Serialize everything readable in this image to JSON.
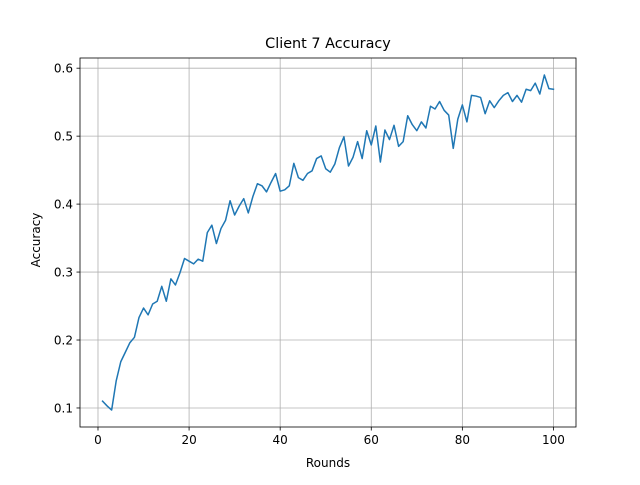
{
  "chart_data": {
    "type": "line",
    "title": "Client 7 Accuracy",
    "xlabel": "Rounds",
    "ylabel": "Accuracy",
    "xlim": [
      -3.95,
      104.95
    ],
    "ylim": [
      0.072,
      0.615
    ],
    "xticks": [
      0,
      20,
      40,
      60,
      80,
      100
    ],
    "yticks": [
      0.1,
      0.2,
      0.3,
      0.4,
      0.5,
      0.6
    ],
    "xtick_labels": [
      "0",
      "20",
      "40",
      "60",
      "80",
      "100"
    ],
    "ytick_labels": [
      "0.1",
      "0.2",
      "0.3",
      "0.4",
      "0.5",
      "0.6"
    ],
    "grid": true,
    "series": [
      {
        "color": "#1f77b4",
        "x": [
          1,
          2,
          3,
          4,
          5,
          6,
          7,
          8,
          9,
          10,
          11,
          12,
          13,
          14,
          15,
          16,
          17,
          18,
          19,
          20,
          21,
          22,
          23,
          24,
          25,
          26,
          27,
          28,
          29,
          30,
          31,
          32,
          33,
          34,
          35,
          36,
          37,
          38,
          39,
          40,
          41,
          42,
          43,
          44,
          45,
          46,
          47,
          48,
          49,
          50,
          51,
          52,
          53,
          54,
          55,
          56,
          57,
          58,
          59,
          60,
          61,
          62,
          63,
          64,
          65,
          66,
          67,
          68,
          69,
          70,
          71,
          72,
          73,
          74,
          75,
          76,
          77,
          78,
          79,
          80,
          81,
          82,
          83,
          84,
          85,
          86,
          87,
          88,
          89,
          90,
          91,
          92,
          93,
          94,
          95,
          96,
          97,
          98,
          99,
          100
        ],
        "y": [
          0.11,
          0.103,
          0.097,
          0.14,
          0.168,
          0.182,
          0.196,
          0.204,
          0.233,
          0.247,
          0.237,
          0.253,
          0.257,
          0.279,
          0.257,
          0.29,
          0.281,
          0.299,
          0.32,
          0.316,
          0.312,
          0.319,
          0.316,
          0.358,
          0.369,
          0.342,
          0.364,
          0.376,
          0.405,
          0.384,
          0.397,
          0.408,
          0.387,
          0.411,
          0.43,
          0.427,
          0.418,
          0.432,
          0.445,
          0.419,
          0.421,
          0.427,
          0.46,
          0.439,
          0.435,
          0.445,
          0.449,
          0.467,
          0.471,
          0.452,
          0.447,
          0.459,
          0.483,
          0.499,
          0.456,
          0.469,
          0.492,
          0.467,
          0.508,
          0.487,
          0.515,
          0.462,
          0.509,
          0.495,
          0.516,
          0.485,
          0.492,
          0.53,
          0.517,
          0.508,
          0.521,
          0.512,
          0.544,
          0.54,
          0.551,
          0.538,
          0.531,
          0.482,
          0.525,
          0.546,
          0.521,
          0.56,
          0.559,
          0.557,
          0.533,
          0.552,
          0.542,
          0.552,
          0.56,
          0.564,
          0.551,
          0.56,
          0.55,
          0.569,
          0.567,
          0.578,
          0.562,
          0.59,
          0.57,
          0.569
        ]
      }
    ]
  }
}
